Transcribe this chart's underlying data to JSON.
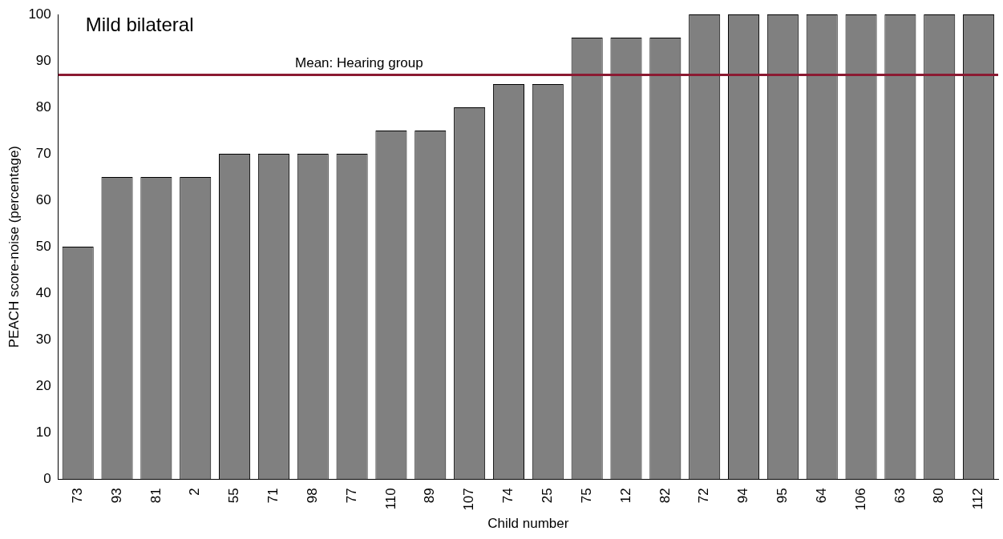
{
  "chart_data": {
    "type": "bar",
    "title": "Mild bilateral",
    "xlabel": "Child number",
    "ylabel": "PEACH score-noise (percentage)",
    "categories": [
      "73",
      "93",
      "81",
      "2",
      "55",
      "71",
      "98",
      "77",
      "110",
      "89",
      "107",
      "74",
      "25",
      "75",
      "12",
      "82",
      "72",
      "94",
      "95",
      "64",
      "106",
      "63",
      "80",
      "112"
    ],
    "values": [
      50,
      65,
      65,
      65,
      70,
      70,
      70,
      70,
      75,
      75,
      80,
      85,
      85,
      95,
      95,
      95,
      100,
      100,
      100,
      100,
      100,
      100,
      100,
      100
    ],
    "color": "#808080",
    "ylim": [
      0,
      100
    ],
    "yticks": [
      0,
      10,
      20,
      30,
      40,
      50,
      60,
      70,
      80,
      90,
      100
    ],
    "grid": false,
    "legend": false,
    "ref_lines": [
      {
        "axis": "y",
        "value": 87,
        "label": "Mean: Hearing group",
        "color": "#8b1a32"
      }
    ]
  }
}
